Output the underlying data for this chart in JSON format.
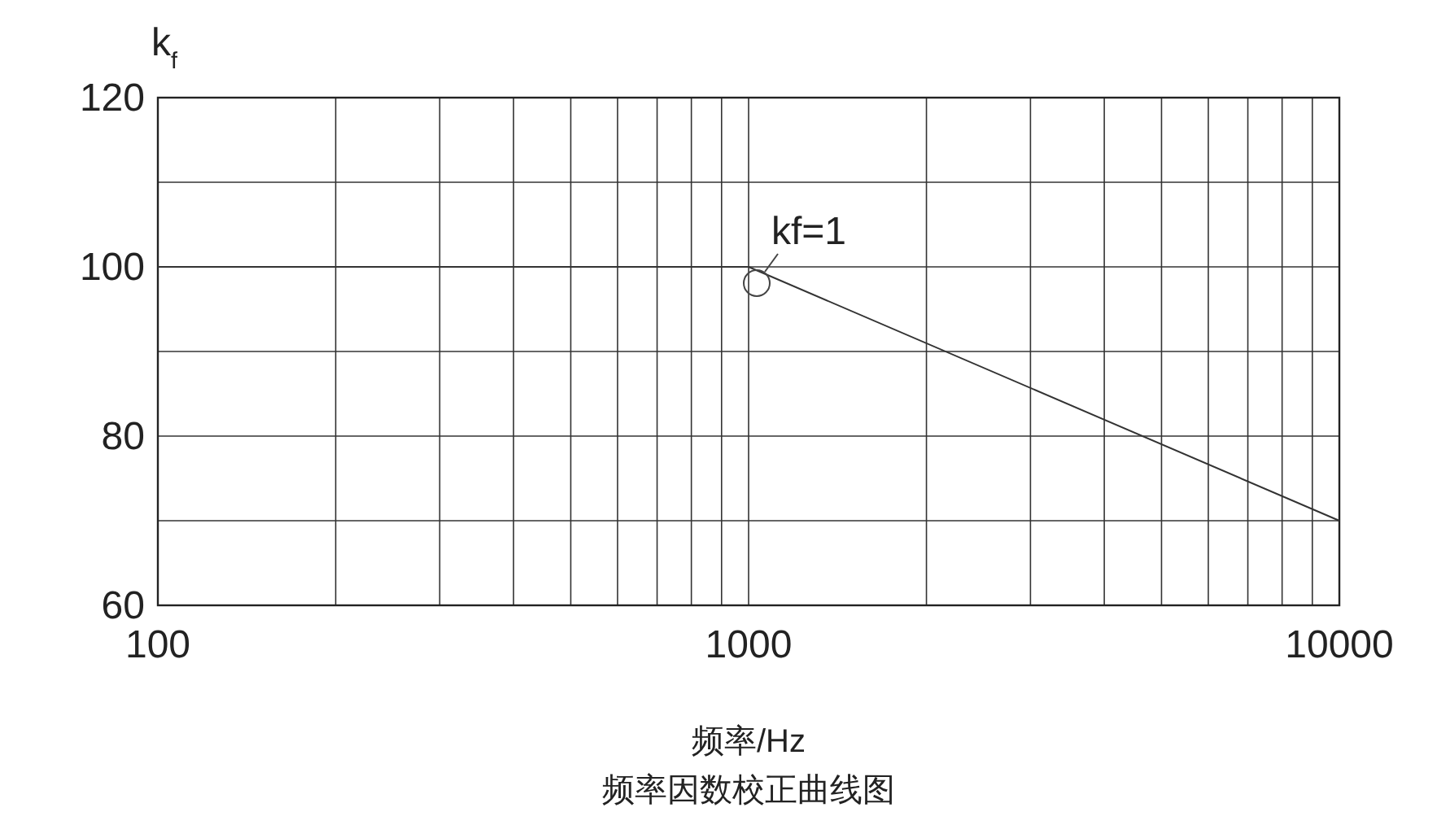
{
  "chart_data": {
    "type": "line",
    "title": "频率因数校正曲线图",
    "xlabel": "频率/Hz",
    "ylabel": "k$_{f}$",
    "log": "x",
    "grid": true,
    "marker": "none",
    "line_style": "solid",
    "xlim": [
      100,
      10000
    ],
    "ylim": [
      60,
      120
    ],
    "xticks": [
      100,
      {
        "value": 200,
        "label": null
      },
      {
        "value": 300,
        "label": null
      },
      {
        "value": 400,
        "label": null
      },
      {
        "value": 500,
        "label": null
      },
      {
        "value": 600,
        "label": null
      },
      {
        "value": 700,
        "label": null
      },
      {
        "value": 800,
        "label": null
      },
      {
        "value": 900,
        "label": null
      },
      1000,
      {
        "value": 2000,
        "label": null
      },
      {
        "value": 3000,
        "label": null
      },
      {
        "value": 4000,
        "label": null
      },
      {
        "value": 5000,
        "label": null
      },
      {
        "value": 6000,
        "label": null
      },
      {
        "value": 7000,
        "label": null
      },
      {
        "value": 8000,
        "label": null
      },
      {
        "value": 9000,
        "label": null
      },
      10000
    ],
    "yticks": [
      60,
      {
        "value": 70,
        "label": null
      },
      80,
      {
        "value": 90,
        "label": null
      },
      100,
      {
        "value": 110,
        "label": null
      },
      120
    ],
    "series": [
      {
        "color": "#333333",
        "x": [
          100,
          1000,
          10000
        ],
        "values": [
          100,
          100,
          70
        ]
      }
    ],
    "annotations": [
      {
        "text": "kf=1",
        "x": 1000,
        "y": 100
      }
    ]
  }
}
